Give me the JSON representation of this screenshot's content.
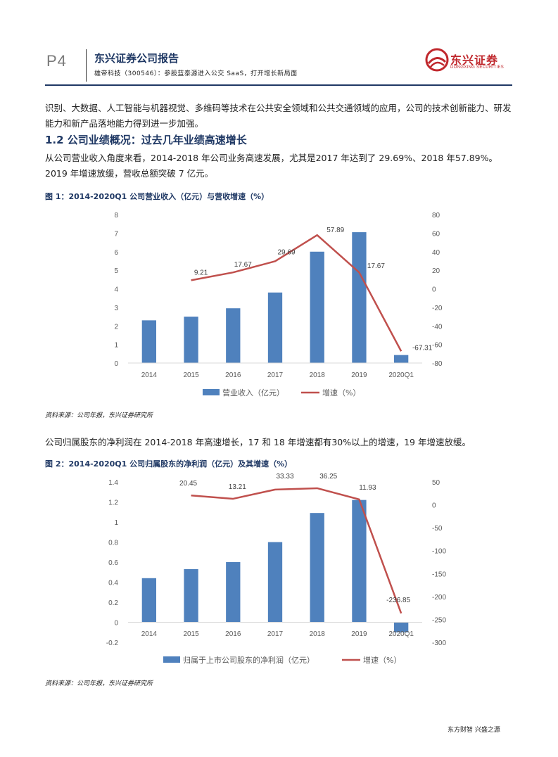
{
  "header": {
    "page": "P4",
    "report_title": "东兴证券公司报告",
    "subtitle": "雄帝科技（300546）：参股蓝泰源进入公交 SaaS，打开增长新局面",
    "logo_cn": "东兴证券",
    "logo_en": "DONGXING SECURITIES"
  },
  "body": {
    "para1": "识别、大数据、人工智能与机器视觉、多维码等技术在公共安全领域和公共交通领域的应用，公司的技术创新能力、研发能力和新产品落地能力得到进一步加强。",
    "section_heading": "1.2 公司业绩概况：过去几年业绩高速增长",
    "para2": "从公司营业收入角度来看，2014-2018 年公司业务高速发展，尤其是2017 年达到了 29.69%、2018 年57.89%。2019 年增速放缓，营收总额突破 7 亿元。",
    "para3": "公司归属股东的净利润在 2014-2018 年高速增长，17 和 18 年增速都有30%以上的增速，19 年增速放缓。"
  },
  "figures": {
    "fig1_title": "图 1：2014-2020Q1 公司营业收入（亿元）与营收增速（%）",
    "fig1_source": "资料来源：公司年报，东兴证券研究所",
    "fig2_title": "图 2：2014-2020Q1 公司归属股东的净利润（亿元）及其增速（%）",
    "fig2_source": "资料来源：公司年报，东兴证券研究所"
  },
  "footer": {
    "text": "东方财智 兴盛之源"
  },
  "chart_data": [
    {
      "type": "bar",
      "title": "图 1：2014-2020Q1 公司营业收入（亿元）与营收增速（%）",
      "categories": [
        "2014",
        "2015",
        "2016",
        "2017",
        "2018",
        "2019",
        "2020Q1"
      ],
      "series": [
        {
          "name": "营业收入（亿元）",
          "type": "bar",
          "axis": "left",
          "values": [
            2.3,
            2.5,
            2.95,
            3.8,
            6.0,
            7.05,
            0.43
          ]
        },
        {
          "name": "增速（%）",
          "type": "line",
          "axis": "right",
          "values": [
            null,
            9.21,
            17.67,
            29.69,
            57.89,
            17.67,
            -67.31
          ],
          "labels": [
            "",
            "9.21",
            "17.67",
            "29.69",
            "57.89",
            "17.67",
            "-67.31"
          ]
        }
      ],
      "ylim_left": [
        0,
        8
      ],
      "yticks_left": [
        "0",
        "1",
        "2",
        "3",
        "4",
        "5",
        "6",
        "7",
        "8"
      ],
      "ylim_right": [
        -80,
        80
      ],
      "yticks_right": [
        "-80",
        "-60",
        "-40",
        "-20",
        "0",
        "20",
        "40",
        "60",
        "80"
      ],
      "legend": "bottom",
      "grid": false,
      "colors": {
        "bar": "#4f81bd",
        "line": "#c0504d"
      }
    },
    {
      "type": "bar",
      "title": "图 2：2014-2020Q1 公司归属股东的净利润（亿元）及其增速（%）",
      "categories": [
        "2014",
        "2015",
        "2016",
        "2017",
        "2018",
        "2019",
        "2020Q1"
      ],
      "series": [
        {
          "name": "归属于上市公司股东的净利润（亿元）",
          "type": "bar",
          "axis": "left",
          "values": [
            0.44,
            0.53,
            0.6,
            0.8,
            1.09,
            1.22,
            -0.1
          ]
        },
        {
          "name": "增速（%）",
          "type": "line",
          "axis": "right",
          "values": [
            null,
            20.45,
            13.21,
            33.33,
            36.25,
            11.93,
            -236.85
          ],
          "labels": [
            "",
            "20.45",
            "13.21",
            "33.33",
            "36.25",
            "11.93",
            "-236.85"
          ]
        }
      ],
      "ylim_left": [
        -0.2,
        1.4
      ],
      "yticks_left": [
        "-0.2",
        "0",
        "0.2",
        "0.4",
        "0.6",
        "0.8",
        "1",
        "1.2",
        "1.4"
      ],
      "ylim_right": [
        -300,
        50
      ],
      "yticks_right": [
        "-300",
        "-250",
        "-200",
        "-150",
        "-100",
        "-50",
        "0",
        "50"
      ],
      "legend": "bottom",
      "grid": false,
      "colors": {
        "bar": "#4f81bd",
        "line": "#c0504d"
      }
    }
  ]
}
